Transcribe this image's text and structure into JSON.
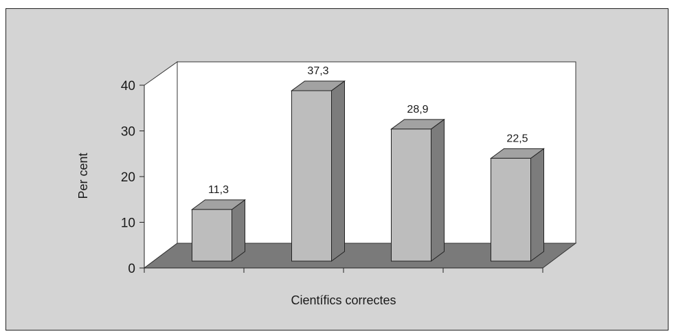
{
  "chart_data": {
    "type": "bar",
    "categories": [
      "",
      "",
      "",
      ""
    ],
    "values": [
      11.3,
      37.3,
      28.9,
      22.5
    ],
    "value_labels": [
      "11,3",
      "37,3",
      "28,9",
      "22,5"
    ],
    "title": "",
    "xlabel": "Científics correctes",
    "ylabel": "Per cent",
    "ylim": [
      0,
      40
    ],
    "yticks": [
      "0",
      "10",
      "20",
      "30",
      "40"
    ],
    "grid": false,
    "legend": "none",
    "colors": {
      "background": "#d4d4d4",
      "plot_wall": "#ffffff",
      "floor": "#7a7a7a",
      "bar_front": "#bdbdbd",
      "bar_top": "#a2a2a2",
      "bar_side": "#7c7c7c"
    }
  }
}
